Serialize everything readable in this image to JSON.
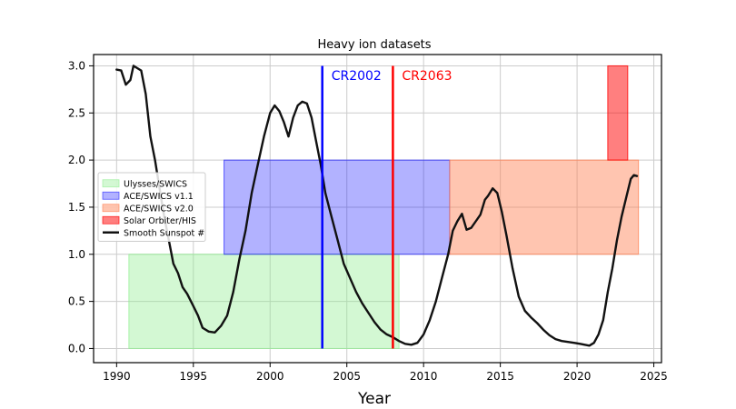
{
  "chart_data": {
    "type": "line",
    "title": "Heavy ion datasets",
    "xlabel": "Year",
    "ylabel": "",
    "xlim": [
      1988.5,
      2025.5
    ],
    "ylim": [
      -0.15,
      3.12
    ],
    "xticks": [
      1990,
      1995,
      2000,
      2005,
      2010,
      2015,
      2020,
      2025
    ],
    "yticks": [
      0.0,
      0.5,
      1.0,
      1.5,
      2.0,
      2.5,
      3.0
    ],
    "grid": true,
    "legend_position": "center-left",
    "shaded_regions": [
      {
        "name": "Ulysses/SWICS",
        "x": [
          1990.8,
          2008.4
        ],
        "y": [
          0,
          1
        ],
        "color": "#90ee90",
        "opacity": 0.4
      },
      {
        "name": "ACE/SWICS v1.1",
        "x": [
          1997.0,
          2011.7
        ],
        "y": [
          1,
          2
        ],
        "color": "#0000ff",
        "opacity": 0.3
      },
      {
        "name": "ACE/SWICS v2.0",
        "x": [
          2011.7,
          2024.0
        ],
        "y": [
          1,
          2
        ],
        "color": "#ff7f50",
        "opacity": 0.45
      },
      {
        "name": "Solar Orbiter/HIS",
        "x": [
          2022.0,
          2023.3
        ],
        "y": [
          2,
          3
        ],
        "color": "#ff0000",
        "opacity": 0.5
      }
    ],
    "vertical_lines": [
      {
        "label": "CR2002",
        "x": 2003.4,
        "color": "#0000ff"
      },
      {
        "label": "CR2063",
        "x": 2008.0,
        "color": "#ff0000"
      }
    ],
    "series": [
      {
        "name": "Smooth Sunspot #",
        "color": "#111111",
        "x": [
          1990.0,
          1990.3,
          1990.6,
          1990.9,
          1991.1,
          1991.3,
          1991.6,
          1991.9,
          1992.2,
          1992.5,
          1992.8,
          1993.1,
          1993.4,
          1993.7,
          1994.0,
          1994.3,
          1994.6,
          1995.0,
          1995.3,
          1995.6,
          1996.0,
          1996.4,
          1996.8,
          1997.2,
          1997.6,
          1998.0,
          1998.4,
          1998.8,
          1999.2,
          1999.6,
          2000.0,
          2000.3,
          2000.6,
          2000.9,
          2001.2,
          2001.5,
          2001.8,
          2002.1,
          2002.4,
          2002.7,
          2003.0,
          2003.3,
          2003.6,
          2004.0,
          2004.4,
          2004.8,
          2005.2,
          2005.6,
          2006.0,
          2006.4,
          2006.8,
          2007.2,
          2007.6,
          2008.0,
          2008.4,
          2008.8,
          2009.2,
          2009.6,
          2010.0,
          2010.4,
          2010.8,
          2011.2,
          2011.6,
          2011.9,
          2012.2,
          2012.5,
          2012.8,
          2013.1,
          2013.4,
          2013.7,
          2014.0,
          2014.2,
          2014.5,
          2014.8,
          2015.1,
          2015.4,
          2015.8,
          2016.2,
          2016.6,
          2017.0,
          2017.4,
          2017.8,
          2018.2,
          2018.6,
          2019.0,
          2019.4,
          2019.8,
          2020.2,
          2020.5,
          2020.8,
          2021.1,
          2021.4,
          2021.7,
          2022.0,
          2022.3,
          2022.6,
          2022.9,
          2023.2,
          2023.5,
          2023.7,
          2023.9
        ],
        "y": [
          2.96,
          2.95,
          2.8,
          2.85,
          3.0,
          2.98,
          2.95,
          2.7,
          2.25,
          2.0,
          1.7,
          1.4,
          1.15,
          0.9,
          0.8,
          0.65,
          0.58,
          0.45,
          0.35,
          0.22,
          0.18,
          0.17,
          0.24,
          0.35,
          0.6,
          0.95,
          1.25,
          1.65,
          1.95,
          2.25,
          2.5,
          2.58,
          2.52,
          2.4,
          2.25,
          2.45,
          2.58,
          2.62,
          2.6,
          2.45,
          2.2,
          1.95,
          1.65,
          1.4,
          1.15,
          0.9,
          0.75,
          0.6,
          0.48,
          0.38,
          0.28,
          0.2,
          0.15,
          0.12,
          0.08,
          0.05,
          0.04,
          0.06,
          0.15,
          0.3,
          0.5,
          0.75,
          1.0,
          1.25,
          1.35,
          1.43,
          1.26,
          1.28,
          1.35,
          1.42,
          1.58,
          1.62,
          1.7,
          1.65,
          1.45,
          1.2,
          0.85,
          0.55,
          0.4,
          0.33,
          0.27,
          0.2,
          0.14,
          0.1,
          0.08,
          0.07,
          0.06,
          0.05,
          0.04,
          0.03,
          0.06,
          0.15,
          0.3,
          0.6,
          0.85,
          1.15,
          1.4,
          1.6,
          1.8,
          1.84,
          1.83
        ]
      }
    ]
  }
}
